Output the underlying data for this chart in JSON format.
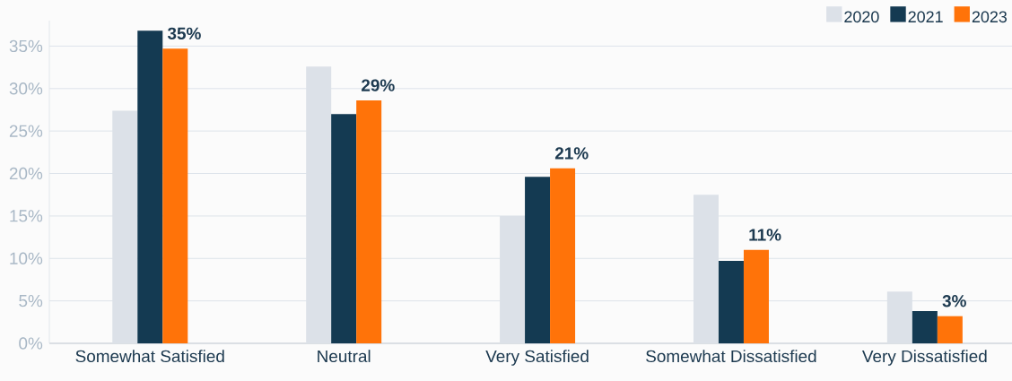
{
  "chart_data": {
    "type": "bar",
    "categories": [
      "Somewhat Satisfied",
      "Neutral",
      "Very Satisfied",
      "Somewhat Dissatisfied",
      "Very Dissatisfied"
    ],
    "series": [
      {
        "name": "2020",
        "color": "#dce1e8",
        "values": [
          27.4,
          32.6,
          15.0,
          17.5,
          6.1
        ]
      },
      {
        "name": "2021",
        "color": "#143a52",
        "values": [
          36.8,
          27.0,
          19.6,
          9.7,
          3.8
        ]
      },
      {
        "name": "2023",
        "color": "#ff7309",
        "values": [
          34.7,
          28.6,
          20.6,
          11.0,
          3.2
        ],
        "value_labels": [
          "35%",
          "29%",
          "21%",
          "11%",
          "3%"
        ]
      }
    ],
    "ylim": [
      0,
      38
    ],
    "yticks": [
      {
        "value": 0,
        "label": "0%"
      },
      {
        "value": 5,
        "label": "5%"
      },
      {
        "value": 10,
        "label": "10%"
      },
      {
        "value": 15,
        "label": "15%"
      },
      {
        "value": 20,
        "label": "20%"
      },
      {
        "value": 25,
        "label": "25%"
      },
      {
        "value": 30,
        "label": "30%"
      },
      {
        "value": 35,
        "label": "35%"
      }
    ],
    "grid": "y",
    "legend": "top right"
  }
}
